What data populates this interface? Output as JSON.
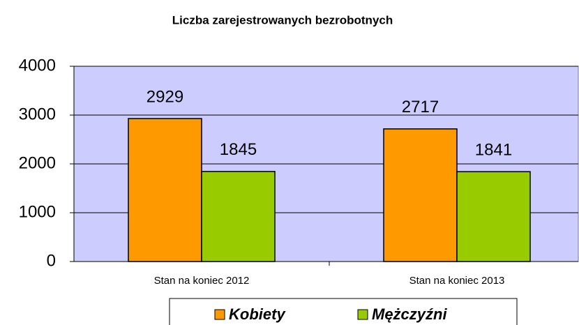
{
  "chart_data": {
    "type": "bar",
    "title": "Liczba zarejestrowanych bezrobotnych",
    "categories": [
      "Stan na koniec 2012",
      "Stan na koniec 2013"
    ],
    "series": [
      {
        "name": "Kobiety",
        "color": "#ff9900",
        "values": [
          2929,
          2717
        ]
      },
      {
        "name": "Mężczyźni",
        "color": "#99cc00",
        "values": [
          1845,
          1841
        ]
      }
    ],
    "ylim": [
      0,
      4000
    ],
    "yticks": [
      0,
      1000,
      2000,
      3000,
      4000
    ],
    "grid": true
  }
}
